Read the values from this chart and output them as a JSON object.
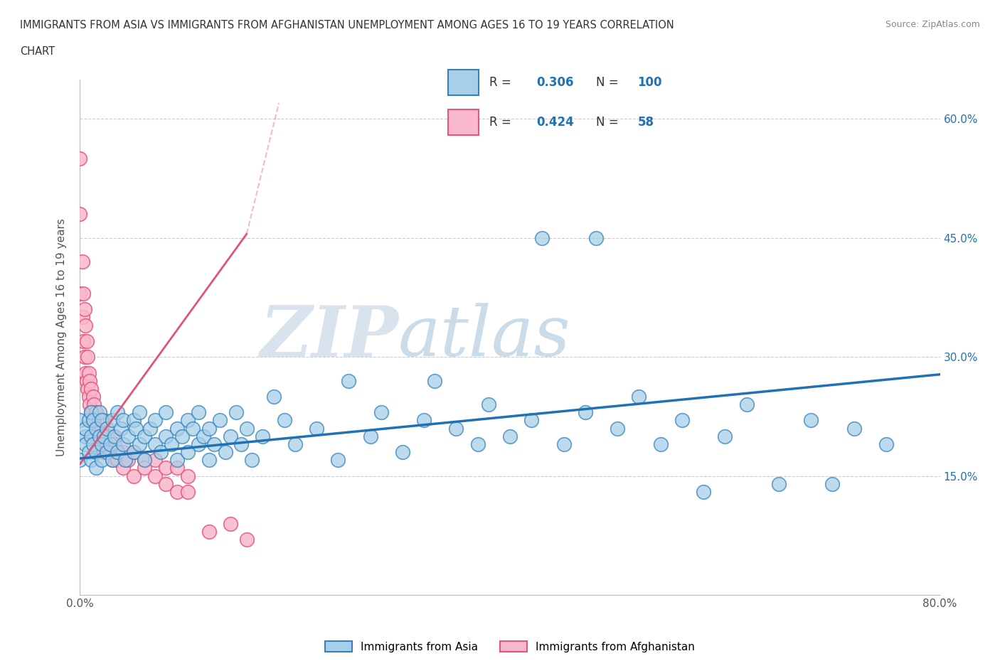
{
  "title_line1": "IMMIGRANTS FROM ASIA VS IMMIGRANTS FROM AFGHANISTAN UNEMPLOYMENT AMONG AGES 16 TO 19 YEARS CORRELATION",
  "title_line2": "CHART",
  "source": "Source: ZipAtlas.com",
  "ylabel": "Unemployment Among Ages 16 to 19 years",
  "watermark": "ZIPatlas",
  "xlim": [
    0.0,
    0.8
  ],
  "ylim": [
    0.0,
    0.65
  ],
  "xtick_positions": [
    0.0,
    0.1,
    0.2,
    0.3,
    0.4,
    0.5,
    0.6,
    0.7,
    0.8
  ],
  "ytick_positions": [
    0.0,
    0.15,
    0.3,
    0.45,
    0.6
  ],
  "right_ytick_labels": [
    "",
    "15.0%",
    "30.0%",
    "45.0%",
    "60.0%"
  ],
  "asia_color": "#a8cfe8",
  "afghanistan_color": "#f9b8cb",
  "asia_edge_color": "#3182bd",
  "afghanistan_edge_color": "#e8547a",
  "asia_line_color": "#2171b5",
  "afghanistan_line_color": "#e05575",
  "R_asia": "0.306",
  "N_asia": "100",
  "R_afghanistan": "0.424",
  "N_afghanistan": "58",
  "asia_trend_x": [
    0.0,
    0.8
  ],
  "asia_trend_y": [
    0.172,
    0.278
  ],
  "afghanistan_trend_x": [
    0.0,
    0.155
  ],
  "afghanistan_trend_y": [
    0.165,
    0.455
  ],
  "legend_label_asia": "Immigrants from Asia",
  "legend_label_afghanistan": "Immigrants from Afghanistan",
  "asia_scatter_x": [
    0.0,
    0.0,
    0.005,
    0.005,
    0.005,
    0.008,
    0.008,
    0.01,
    0.01,
    0.01,
    0.012,
    0.012,
    0.015,
    0.015,
    0.015,
    0.018,
    0.018,
    0.02,
    0.02,
    0.02,
    0.022,
    0.025,
    0.025,
    0.028,
    0.03,
    0.03,
    0.032,
    0.035,
    0.035,
    0.038,
    0.04,
    0.04,
    0.042,
    0.045,
    0.05,
    0.05,
    0.052,
    0.055,
    0.055,
    0.06,
    0.06,
    0.065,
    0.07,
    0.07,
    0.075,
    0.08,
    0.08,
    0.085,
    0.09,
    0.09,
    0.095,
    0.1,
    0.1,
    0.105,
    0.11,
    0.11,
    0.115,
    0.12,
    0.12,
    0.125,
    0.13,
    0.135,
    0.14,
    0.145,
    0.15,
    0.155,
    0.16,
    0.17,
    0.18,
    0.19,
    0.2,
    0.22,
    0.24,
    0.25,
    0.27,
    0.28,
    0.3,
    0.32,
    0.33,
    0.35,
    0.37,
    0.38,
    0.4,
    0.42,
    0.43,
    0.45,
    0.47,
    0.48,
    0.5,
    0.52,
    0.54,
    0.56,
    0.58,
    0.6,
    0.62,
    0.65,
    0.68,
    0.7,
    0.72,
    0.75
  ],
  "asia_scatter_y": [
    0.22,
    0.17,
    0.2,
    0.19,
    0.21,
    0.18,
    0.22,
    0.2,
    0.23,
    0.17,
    0.19,
    0.22,
    0.18,
    0.21,
    0.16,
    0.2,
    0.23,
    0.19,
    0.22,
    0.17,
    0.2,
    0.18,
    0.21,
    0.19,
    0.22,
    0.17,
    0.2,
    0.23,
    0.18,
    0.21,
    0.19,
    0.22,
    0.17,
    0.2,
    0.18,
    0.22,
    0.21,
    0.19,
    0.23,
    0.2,
    0.17,
    0.21,
    0.19,
    0.22,
    0.18,
    0.2,
    0.23,
    0.19,
    0.21,
    0.17,
    0.2,
    0.18,
    0.22,
    0.21,
    0.19,
    0.23,
    0.2,
    0.17,
    0.21,
    0.19,
    0.22,
    0.18,
    0.2,
    0.23,
    0.19,
    0.21,
    0.17,
    0.2,
    0.25,
    0.22,
    0.19,
    0.21,
    0.17,
    0.27,
    0.2,
    0.23,
    0.18,
    0.22,
    0.27,
    0.21,
    0.19,
    0.24,
    0.2,
    0.22,
    0.45,
    0.19,
    0.23,
    0.45,
    0.21,
    0.25,
    0.19,
    0.22,
    0.13,
    0.2,
    0.24,
    0.14,
    0.22,
    0.14,
    0.21,
    0.19
  ],
  "afghanistan_scatter_x": [
    0.0,
    0.0,
    0.0,
    0.002,
    0.002,
    0.003,
    0.003,
    0.004,
    0.004,
    0.005,
    0.005,
    0.006,
    0.006,
    0.007,
    0.007,
    0.008,
    0.008,
    0.009,
    0.009,
    0.01,
    0.01,
    0.012,
    0.012,
    0.013,
    0.015,
    0.015,
    0.017,
    0.017,
    0.02,
    0.02,
    0.022,
    0.022,
    0.025,
    0.025,
    0.028,
    0.03,
    0.03,
    0.032,
    0.035,
    0.035,
    0.04,
    0.04,
    0.045,
    0.05,
    0.05,
    0.06,
    0.06,
    0.07,
    0.07,
    0.08,
    0.08,
    0.09,
    0.09,
    0.1,
    0.1,
    0.12,
    0.14,
    0.155
  ],
  "afghanistan_scatter_y": [
    0.55,
    0.48,
    0.38,
    0.42,
    0.35,
    0.38,
    0.32,
    0.36,
    0.3,
    0.34,
    0.28,
    0.32,
    0.27,
    0.3,
    0.26,
    0.28,
    0.25,
    0.27,
    0.24,
    0.26,
    0.23,
    0.25,
    0.22,
    0.24,
    0.23,
    0.21,
    0.22,
    0.2,
    0.21,
    0.19,
    0.22,
    0.18,
    0.2,
    0.19,
    0.18,
    0.2,
    0.17,
    0.19,
    0.18,
    0.17,
    0.18,
    0.16,
    0.17,
    0.18,
    0.15,
    0.17,
    0.16,
    0.17,
    0.15,
    0.16,
    0.14,
    0.16,
    0.13,
    0.15,
    0.13,
    0.08,
    0.09,
    0.07
  ]
}
